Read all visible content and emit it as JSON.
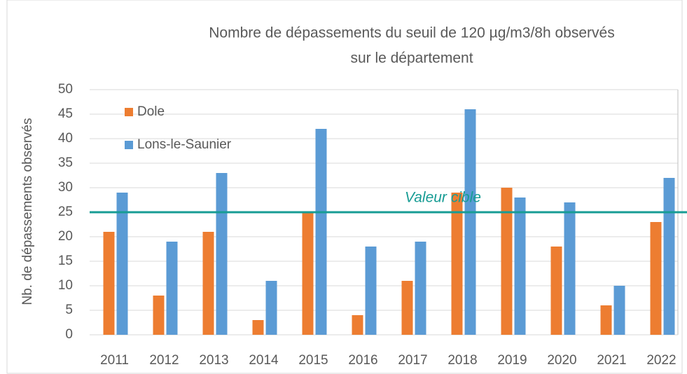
{
  "chart_data": {
    "type": "bar",
    "title": [
      "Nombre de dépassements du seuil de 120 µg/m3/8h observés",
      "sur le département"
    ],
    "y_label": "Nb. de dépassements observés",
    "categories": [
      "2011",
      "2012",
      "2013",
      "2014",
      "2015",
      "2016",
      "2017",
      "2018",
      "2019",
      "2020",
      "2021",
      "2022"
    ],
    "series": [
      {
        "name": "Dole",
        "color": "#ed7d31",
        "values": [
          21,
          8,
          21,
          3,
          25,
          4,
          11,
          29,
          30,
          18,
          6,
          23
        ]
      },
      {
        "name": "Lons-le-Saunier",
        "color": "#5b9bd5",
        "values": [
          29,
          19,
          33,
          11,
          42,
          18,
          19,
          46,
          28,
          27,
          10,
          32
        ]
      }
    ],
    "reference_line": {
      "value": 25,
      "label": "Valeur cible",
      "color": "#179c94"
    },
    "ylim": [
      0,
      50
    ],
    "yticks": [
      0,
      5,
      10,
      15,
      20,
      25,
      30,
      35,
      40,
      45,
      50
    ],
    "grid": true,
    "legend": "upper-left"
  }
}
